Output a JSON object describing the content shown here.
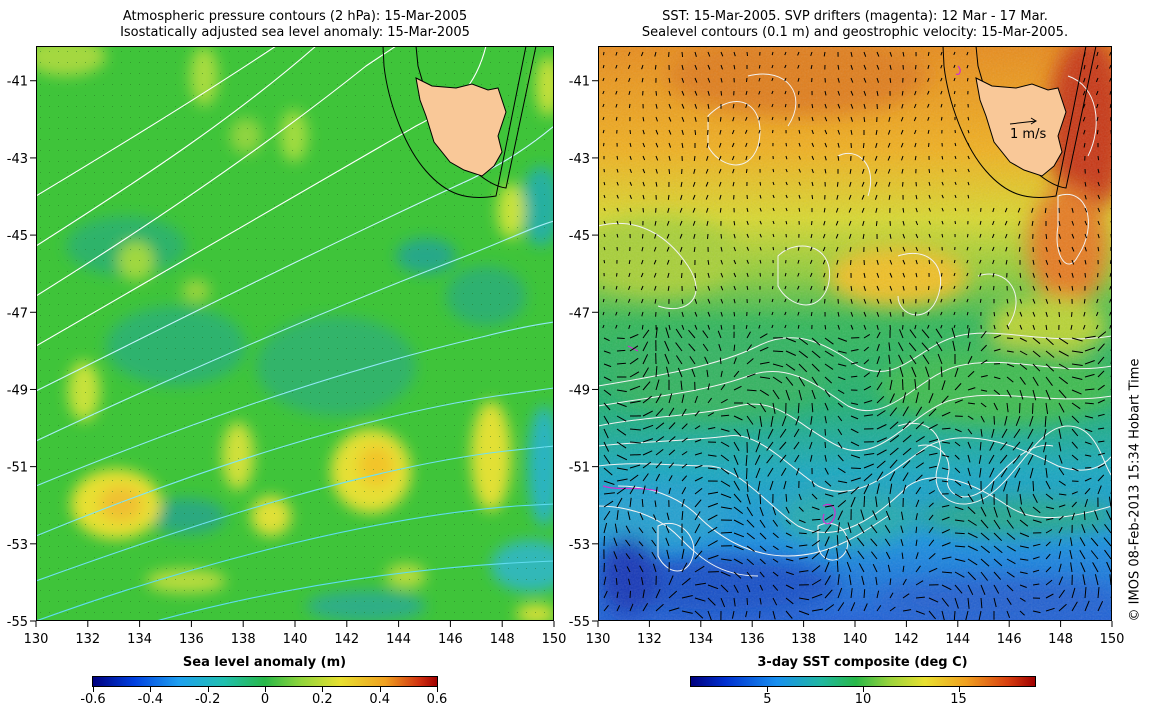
{
  "left_map": {
    "title_line1": "Atmospheric pressure contours (2 hPa): 15-Mar-2005",
    "title_line2": "Isostatically adjusted sea level anomaly: 15-Mar-2005",
    "colorbar": {
      "title": "Sea level anomaly (m)",
      "tick_labels": [
        "-0.6",
        "-0.4",
        "-0.2",
        "0",
        "0.2",
        "0.4",
        "0.6"
      ],
      "tick_values": [
        -0.6,
        -0.4,
        -0.2,
        0,
        0.2,
        0.4,
        0.6
      ],
      "range": [
        -0.6,
        0.6
      ]
    }
  },
  "right_map": {
    "title_line1": "SST: 15-Mar-2005. SVP drifters (magenta): 12 Mar - 17 Mar.",
    "title_line2": "Sealevel contours (0.1 m) and geostrophic velocity: 15-Mar-2005.",
    "scale_label": "1 m/s",
    "colorbar": {
      "title": "3-day SST composite (deg C)",
      "tick_labels": [
        "5",
        "10",
        "15"
      ],
      "tick_values": [
        5,
        10,
        15
      ],
      "range": [
        1,
        19
      ]
    }
  },
  "axes": {
    "lon_labels": [
      "130",
      "132",
      "134",
      "136",
      "138",
      "140",
      "142",
      "144",
      "146",
      "148",
      "150"
    ],
    "lat_labels": [
      "-41",
      "-43",
      "-45",
      "-47",
      "-49",
      "-51",
      "-53",
      "-55"
    ],
    "lon_range": [
      130,
      150
    ],
    "lat_range": [
      -55,
      -40.1
    ]
  },
  "copyright": "© IMOS 08-Feb-2013 15:34 Hobart Time",
  "colors": {
    "land": "#f9c898",
    "sla_background": "#3fc43a",
    "sst_warm": "#e59a20",
    "sst_cool": "#1a9cf0",
    "vectors": "#000000",
    "contours_white": "#ffffff",
    "contours_cyan": "#60e0f0"
  }
}
